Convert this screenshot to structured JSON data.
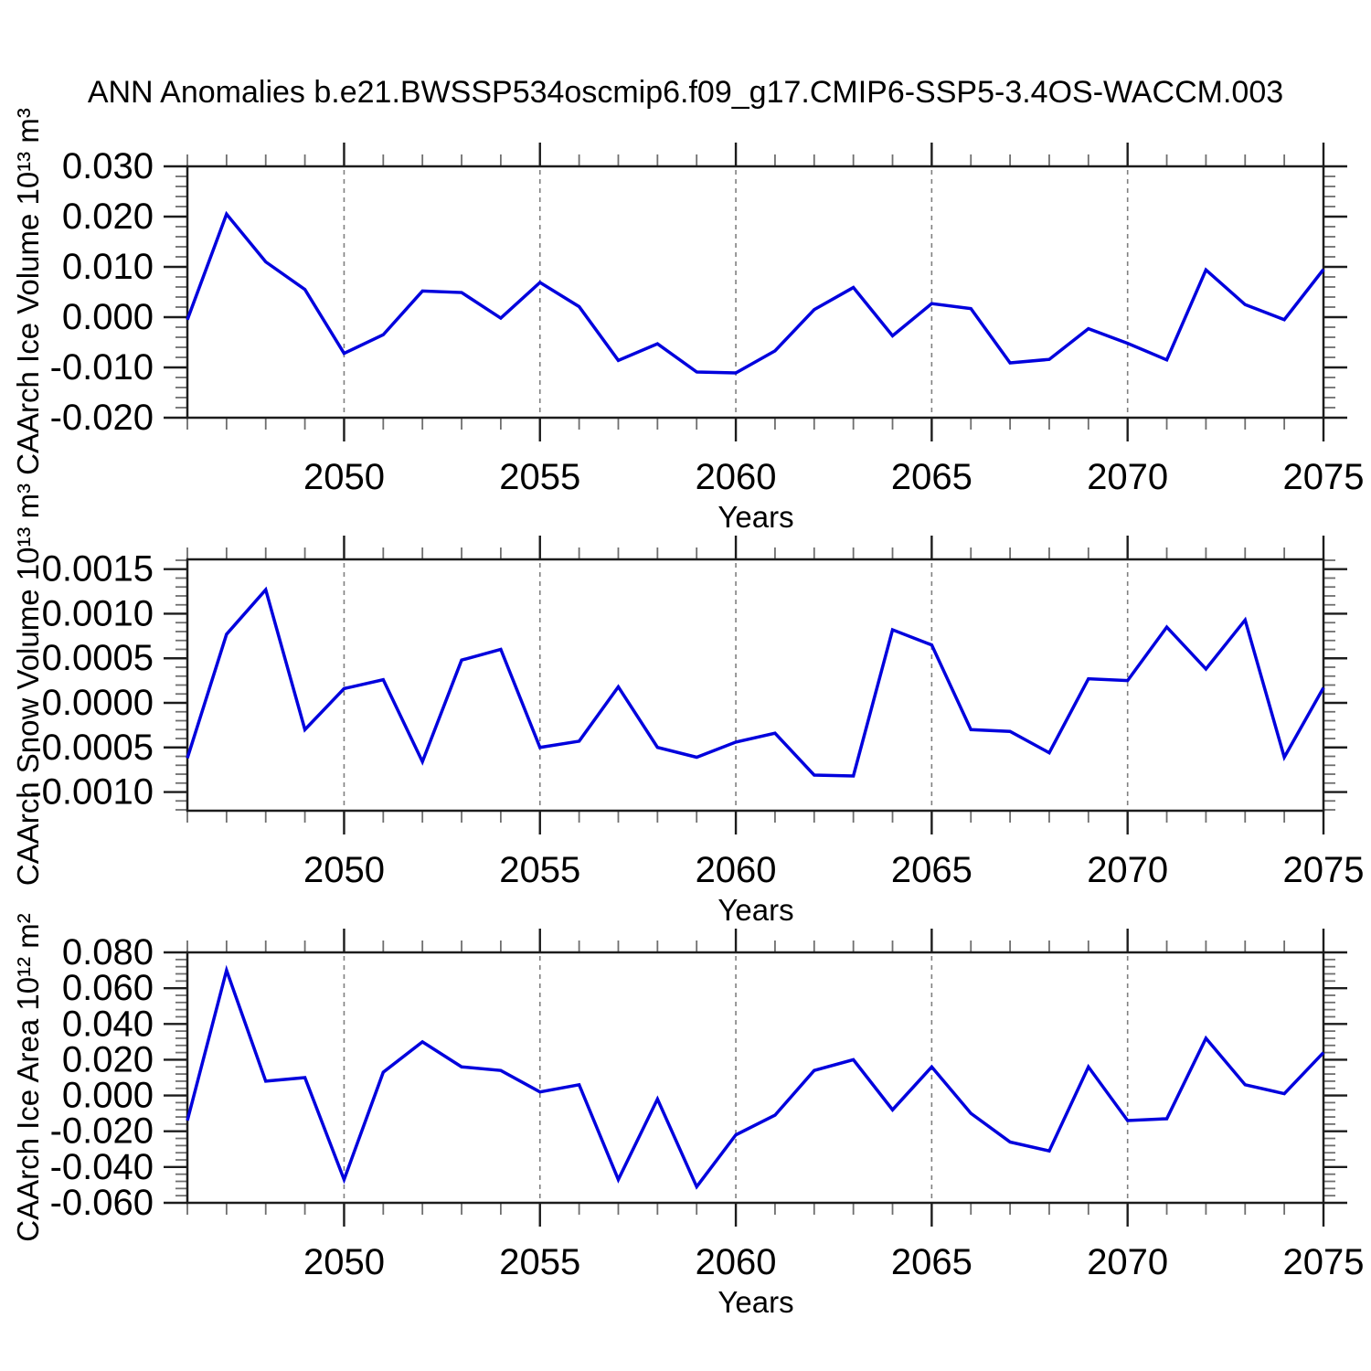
{
  "title": "ANN Anomalies b.e21.BWSSP534oscmip6.f09_g17.CMIP6-SSP5-3.4OS-WACCM.003",
  "colors": {
    "line": "#0000dd",
    "axis": "#1c1c1c",
    "minor_tick": "#6e6e6e",
    "grid": "#808080",
    "text": "#000000",
    "background": "#ffffff"
  },
  "x_axis": {
    "label": "Years",
    "gridline_years": [
      2050,
      2055,
      2060,
      2065,
      2070
    ]
  },
  "chart_data": [
    {
      "type": "line",
      "name": "caarch-ice-volume",
      "ylabel": "CAArch Ice Volume 10¹³ m³",
      "xlabel": "Years",
      "xlim": [
        2046,
        2075
      ],
      "ylim": [
        -0.02,
        0.03
      ],
      "grid": "dashed-vertical",
      "legend": "none",
      "xticks": {
        "values": [
          2050,
          2055,
          2060,
          2065,
          2070,
          2075
        ],
        "labels": [
          "2050",
          "2055",
          "2060",
          "2065",
          "2070",
          "2075"
        ]
      },
      "xminor_step": 1,
      "yticks": {
        "values": [
          0.03,
          0.02,
          0.01,
          0.0,
          -0.01,
          -0.02
        ],
        "labels": [
          "0.030",
          "0.020",
          "0.010",
          "0.000",
          "-0.010",
          "-0.020"
        ]
      },
      "yminor_step": 0.002,
      "x": [
        2046,
        2047,
        2048,
        2049,
        2050,
        2051,
        2052,
        2053,
        2054,
        2055,
        2056,
        2057,
        2058,
        2059,
        2060,
        2061,
        2062,
        2063,
        2064,
        2065,
        2066,
        2067,
        2068,
        2069,
        2070,
        2071,
        2072,
        2073,
        2074,
        2075
      ],
      "values": [
        -0.0005,
        0.0205,
        0.011,
        0.0055,
        -0.0072,
        -0.0035,
        0.0052,
        0.0049,
        -0.0002,
        0.0069,
        0.0021,
        -0.0086,
        -0.0053,
        -0.0109,
        -0.0111,
        -0.0067,
        0.0015,
        0.0059,
        -0.0037,
        0.0027,
        0.0017,
        -0.0091,
        -0.0084,
        -0.0023,
        -0.0052,
        -0.0085,
        0.0094,
        0.0025,
        -0.0005,
        0.0095
      ]
    },
    {
      "type": "line",
      "name": "caarch-snow-volume",
      "ylabel": "CAArch Snow Volume 10¹³ m³",
      "xlabel": "Years",
      "xlim": [
        2046,
        2075
      ],
      "ylim": [
        -0.00121,
        0.00161
      ],
      "grid": "dashed-vertical",
      "legend": "none",
      "xticks": {
        "values": [
          2050,
          2055,
          2060,
          2065,
          2070,
          2075
        ],
        "labels": [
          "2050",
          "2055",
          "2060",
          "2065",
          "2070",
          "2075"
        ]
      },
      "xminor_step": 1,
      "yticks": {
        "values": [
          0.0015,
          0.001,
          0.0005,
          0.0,
          -0.0005,
          -0.001
        ],
        "labels": [
          "0.0015",
          "0.0010",
          "0.0005",
          "0.0000",
          "-0.0005",
          "-0.0010"
        ]
      },
      "yminor_step": 0.0001,
      "x": [
        2046,
        2047,
        2048,
        2049,
        2050,
        2051,
        2052,
        2053,
        2054,
        2055,
        2056,
        2057,
        2058,
        2059,
        2060,
        2061,
        2062,
        2063,
        2064,
        2065,
        2066,
        2067,
        2068,
        2069,
        2070,
        2071,
        2072,
        2073,
        2074,
        2075
      ],
      "values": [
        -0.00062,
        0.00077,
        0.00127,
        -0.0003,
        0.00016,
        0.00026,
        -0.00066,
        0.00048,
        0.0006,
        -0.0005,
        -0.00043,
        0.00018,
        -0.0005,
        -0.00061,
        -0.00044,
        -0.00034,
        -0.00081,
        -0.00082,
        0.00082,
        0.00065,
        -0.0003,
        -0.00032,
        -0.00056,
        0.00027,
        0.00025,
        0.00085,
        0.00038,
        0.00093,
        -0.00061,
        0.00017
      ]
    },
    {
      "type": "line",
      "name": "caarch-ice-area",
      "ylabel": "CAArch Ice Area 10¹² m²",
      "xlabel": "Years",
      "xlim": [
        2046,
        2075
      ],
      "ylim": [
        -0.06,
        0.08
      ],
      "grid": "dashed-vertical",
      "legend": "none",
      "xticks": {
        "values": [
          2050,
          2055,
          2060,
          2065,
          2070,
          2075
        ],
        "labels": [
          "2050",
          "2055",
          "2060",
          "2065",
          "2070",
          "2075"
        ]
      },
      "xminor_step": 1,
      "yticks": {
        "values": [
          0.08,
          0.06,
          0.04,
          0.02,
          0.0,
          -0.02,
          -0.04,
          -0.06
        ],
        "labels": [
          "0.080",
          "0.060",
          "0.040",
          "0.020",
          "0.000",
          "-0.020",
          "-0.040",
          "-0.060"
        ]
      },
      "yminor_step": 0.004,
      "x": [
        2046,
        2047,
        2048,
        2049,
        2050,
        2051,
        2052,
        2053,
        2054,
        2055,
        2056,
        2057,
        2058,
        2059,
        2060,
        2061,
        2062,
        2063,
        2064,
        2065,
        2066,
        2067,
        2068,
        2069,
        2070,
        2071,
        2072,
        2073,
        2074,
        2075
      ],
      "values": [
        -0.014,
        0.07,
        0.008,
        0.01,
        -0.047,
        0.013,
        0.03,
        0.016,
        0.014,
        0.002,
        0.006,
        -0.047,
        -0.002,
        -0.051,
        -0.022,
        -0.011,
        0.014,
        0.02,
        -0.008,
        0.016,
        -0.01,
        -0.026,
        -0.031,
        0.016,
        -0.014,
        -0.013,
        0.032,
        0.006,
        0.001,
        0.024
      ]
    }
  ]
}
